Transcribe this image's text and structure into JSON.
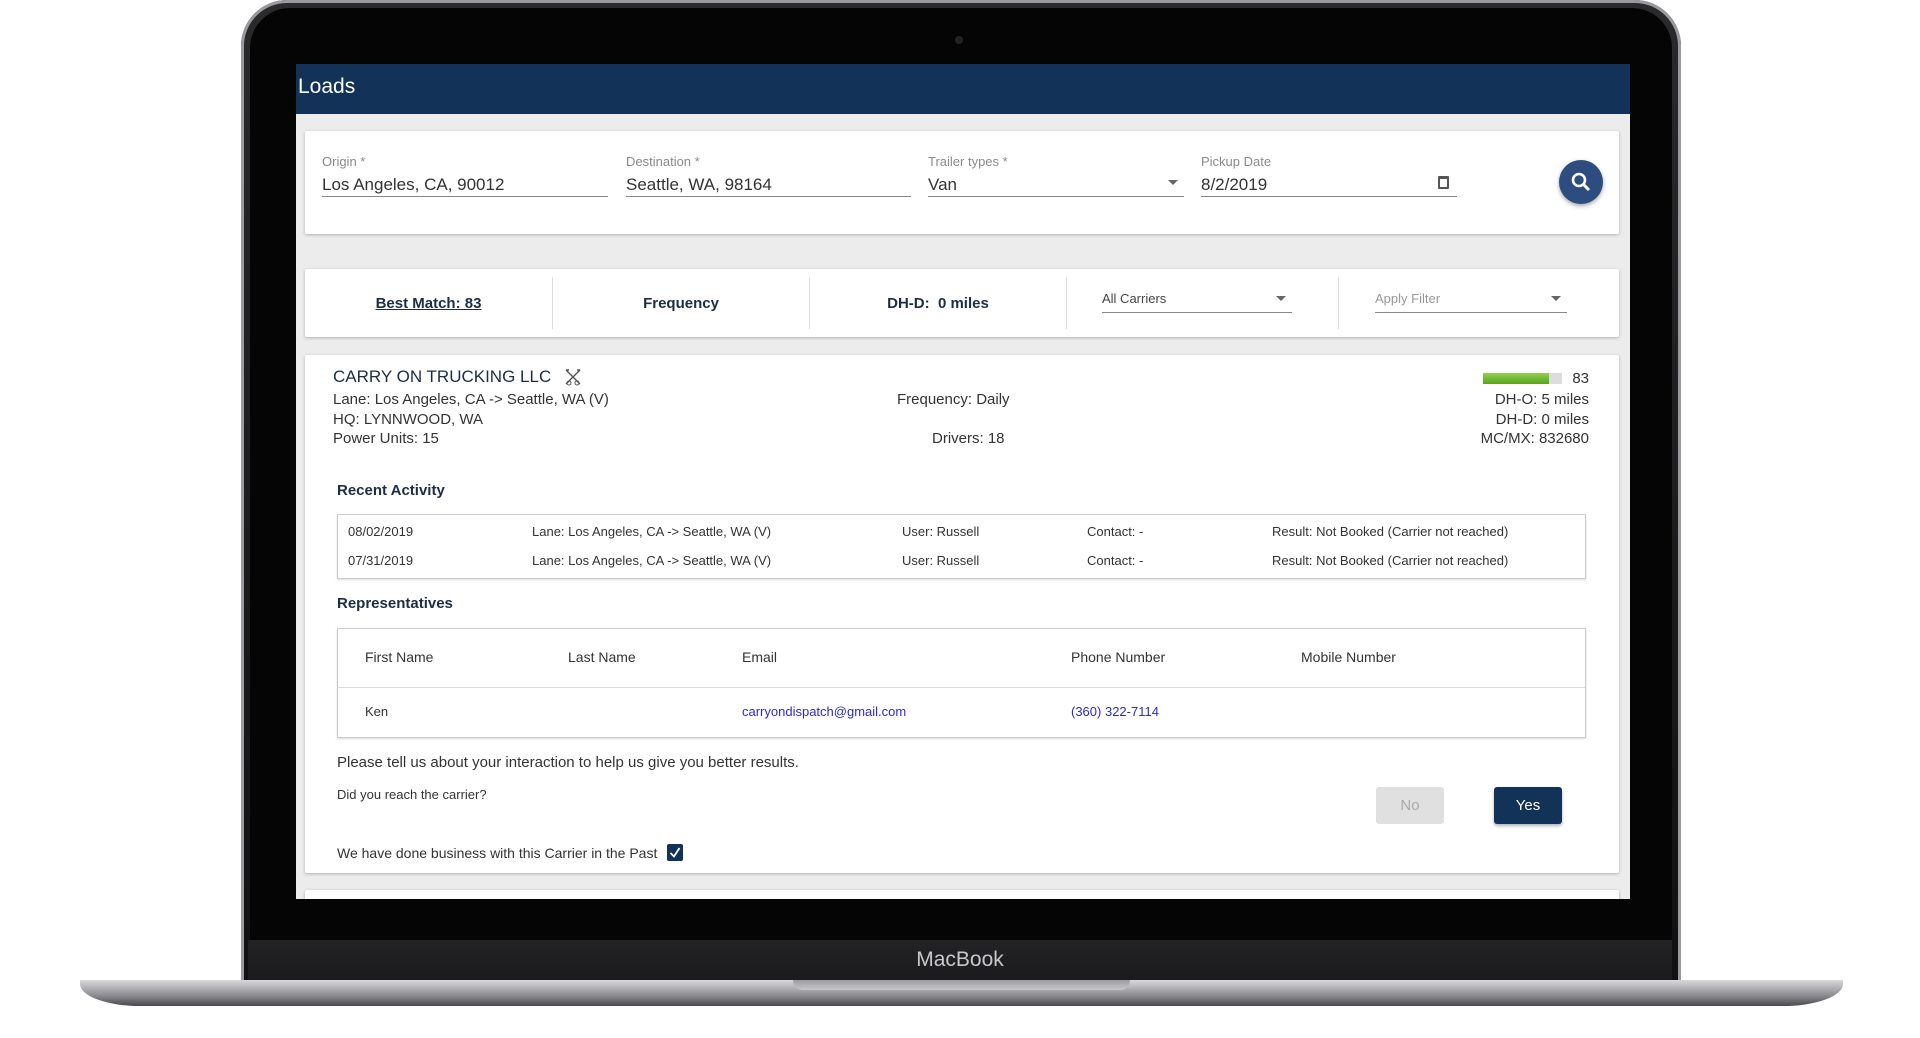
{
  "device": {
    "brand": "MacBook"
  },
  "header": {
    "title": "Loads"
  },
  "search": {
    "origin": {
      "label": "Origin *",
      "value": "Los Angeles, CA, 90012"
    },
    "destination": {
      "label": "Destination *",
      "value": "Seattle, WA, 98164"
    },
    "trailer": {
      "label": "Trailer types *",
      "value": "Van"
    },
    "pickup": {
      "label": "Pickup Date",
      "value": "8/2/2019"
    }
  },
  "filters": {
    "best_match": "Best Match: 83",
    "frequency": "Frequency",
    "dhd": "DH-D:  0 miles",
    "carriers": "All Carriers",
    "apply_filter": "Apply Filter"
  },
  "carrier": {
    "name": "CARRY ON TRUCKING LLC",
    "lane": "Lane: Los Angeles, CA -> Seattle, WA (V)",
    "hq": "HQ: LYNNWOOD, WA",
    "power_units": "Power Units: 15",
    "frequency": "Frequency: Daily",
    "drivers": "Drivers: 18",
    "score": "83",
    "score_percent": 83,
    "score_color": "#6ab42d",
    "dho": "DH-O: 5 miles",
    "dhd": "DH-D: 0 miles",
    "mc": "MC/MX: 832680"
  },
  "recent_activity": {
    "title": "Recent Activity",
    "rows": [
      {
        "date": "08/02/2019",
        "lane": "Lane: Los Angeles, CA -> Seattle, WA (V)",
        "user": "User: Russell",
        "contact": "Contact: -",
        "result": "Result: Not Booked (Carrier not reached)"
      },
      {
        "date": "07/31/2019",
        "lane": "Lane: Los Angeles, CA -> Seattle, WA (V)",
        "user": "User: Russell",
        "contact": "Contact: -",
        "result": "Result: Not Booked (Carrier not reached)"
      }
    ]
  },
  "representatives": {
    "title": "Representatives",
    "columns": [
      "First Name",
      "Last Name",
      "Email",
      "Phone Number",
      "Mobile Number"
    ],
    "rows": [
      {
        "first": "Ken",
        "last": "",
        "email": "carryondispatch@gmail.com",
        "phone": "(360) 322-7114",
        "mobile": ""
      }
    ]
  },
  "feedback": {
    "prompt": "Please tell us about your interaction to help us give you better results.",
    "question": "Did you reach the carrier?",
    "no": "No",
    "yes": "Yes",
    "past_business": "We have done business with this Carrier in the Past",
    "past_business_checked": true
  },
  "colors": {
    "header": "#133257",
    "accent": "#133257",
    "link": "#2a2ad0"
  }
}
